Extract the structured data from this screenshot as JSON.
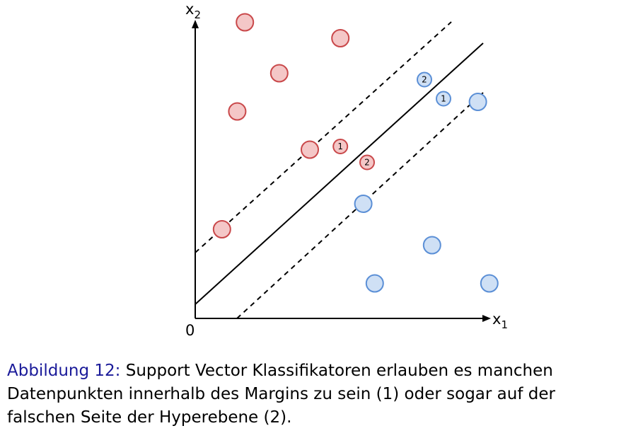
{
  "axes": {
    "origin_label": "0",
    "x_label": "x",
    "x_subscript": "1",
    "y_label": "x",
    "y_subscript": "2"
  },
  "colors": {
    "class_a_fill": "#f4c7c7",
    "class_a_stroke": "#c9484a",
    "class_b_fill": "#cfe0f5",
    "class_b_stroke": "#5b8fd6",
    "line": "#000000"
  },
  "points": {
    "class_a": [
      {
        "x": 0.13,
        "y": 0.93,
        "label": ""
      },
      {
        "x": 0.38,
        "y": 0.88,
        "label": ""
      },
      {
        "x": 0.22,
        "y": 0.77,
        "label": ""
      },
      {
        "x": 0.11,
        "y": 0.65,
        "label": ""
      },
      {
        "x": 0.3,
        "y": 0.53,
        "label": ""
      },
      {
        "x": 0.38,
        "y": 0.54,
        "label": "1"
      },
      {
        "x": 0.45,
        "y": 0.49,
        "label": "2"
      },
      {
        "x": 0.07,
        "y": 0.28,
        "label": ""
      }
    ],
    "class_b": [
      {
        "x": 0.6,
        "y": 0.75,
        "label": "2"
      },
      {
        "x": 0.65,
        "y": 0.69,
        "label": "1"
      },
      {
        "x": 0.74,
        "y": 0.68,
        "label": ""
      },
      {
        "x": 0.44,
        "y": 0.36,
        "label": ""
      },
      {
        "x": 0.62,
        "y": 0.23,
        "label": ""
      },
      {
        "x": 0.47,
        "y": 0.11,
        "label": ""
      },
      {
        "x": 0.77,
        "y": 0.11,
        "label": ""
      }
    ]
  },
  "caption": {
    "label": "Abbildung 12:",
    "text": " Support Vector Klassifikatoren erlauben es manchen Datenpunkten innerhalb des Margins zu sein (1) oder sogar auf der falschen Seite der Hyperebene (2)."
  }
}
